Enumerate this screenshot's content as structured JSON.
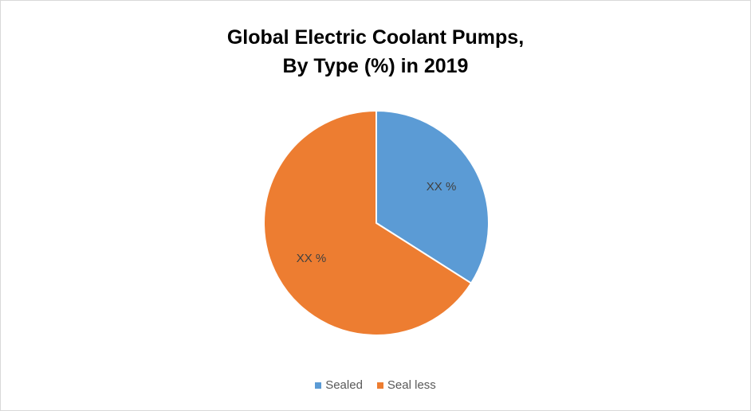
{
  "chart_data": {
    "type": "pie",
    "title_lines": [
      "Global Electric Coolant Pumps,",
      "By Type (%) in 2019"
    ],
    "categories": [
      "Sealed",
      "Seal less"
    ],
    "values": [
      34,
      66
    ],
    "data_labels": [
      "XX %",
      "XX %"
    ],
    "colors": [
      "#5b9bd5",
      "#ed7d31"
    ],
    "start_angle_deg": 0,
    "direction": "clockwise",
    "legend_position": "bottom"
  }
}
